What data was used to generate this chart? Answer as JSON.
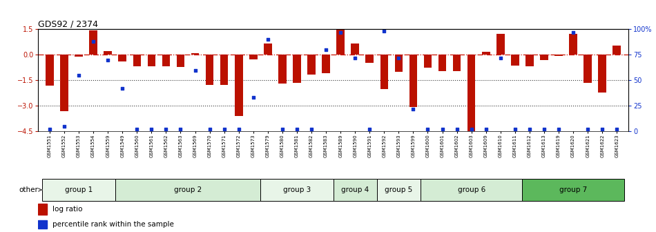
{
  "title": "GDS92 / 2374",
  "samples": [
    "GSM1551",
    "GSM1552",
    "GSM1553",
    "GSM1554",
    "GSM1559",
    "GSM1549",
    "GSM1560",
    "GSM1561",
    "GSM1562",
    "GSM1563",
    "GSM1569",
    "GSM1570",
    "GSM1571",
    "GSM1572",
    "GSM1573",
    "GSM1579",
    "GSM1580",
    "GSM1581",
    "GSM1582",
    "GSM1583",
    "GSM1589",
    "GSM1590",
    "GSM1591",
    "GSM1592",
    "GSM1593",
    "GSM1599",
    "GSM1600",
    "GSM1601",
    "GSM1602",
    "GSM1603",
    "GSM1609",
    "GSM1610",
    "GSM1611",
    "GSM1612",
    "GSM1613",
    "GSM1619",
    "GSM1620",
    "GSM1621",
    "GSM1622",
    "GSM1623"
  ],
  "log_ratio": [
    -1.8,
    -3.3,
    -0.12,
    1.42,
    0.22,
    -0.38,
    -0.68,
    -0.68,
    -0.68,
    -0.7,
    0.1,
    -1.78,
    -1.78,
    -3.6,
    -0.28,
    0.65,
    -1.68,
    -1.65,
    -1.15,
    -1.1,
    1.5,
    0.65,
    -0.48,
    -2.0,
    -1.0,
    -3.05,
    -0.75,
    -0.98,
    -0.95,
    -4.5,
    0.18,
    1.22,
    -0.65,
    -0.68,
    -0.32,
    -0.05,
    1.22,
    -1.65,
    -2.2,
    0.55
  ],
  "percentile": [
    2,
    5,
    55,
    88,
    70,
    42,
    2,
    2,
    2,
    2,
    60,
    2,
    2,
    2,
    33,
    90,
    2,
    2,
    2,
    80,
    97,
    72,
    2,
    98,
    72,
    22,
    2,
    2,
    2,
    2,
    2,
    72,
    2,
    2,
    2,
    2,
    97,
    2,
    2,
    2
  ],
  "groups": [
    {
      "name": "group 1",
      "start": 0,
      "end": 4
    },
    {
      "name": "group 2",
      "start": 5,
      "end": 14
    },
    {
      "name": "group 3",
      "start": 15,
      "end": 19
    },
    {
      "name": "group 4",
      "start": 20,
      "end": 22
    },
    {
      "name": "group 5",
      "start": 23,
      "end": 25
    },
    {
      "name": "group 6",
      "start": 26,
      "end": 32
    },
    {
      "name": "group 7",
      "start": 33,
      "end": 39
    }
  ],
  "group_colors": [
    "#e8f5e8",
    "#d4ecd4",
    "#e8f5e8",
    "#d4ecd4",
    "#e8f5e8",
    "#d4ecd4",
    "#5cb85c"
  ],
  "ylim": [
    -4.5,
    1.5
  ],
  "yticks_left": [
    -4.5,
    -3.0,
    -1.5,
    0.0,
    1.5
  ],
  "yticks_right": [
    0,
    25,
    50,
    75,
    100
  ],
  "bar_color": "#bb1100",
  "dot_color": "#1133cc",
  "hline_zero_color": "#cc1100",
  "hline_color": "#333333"
}
